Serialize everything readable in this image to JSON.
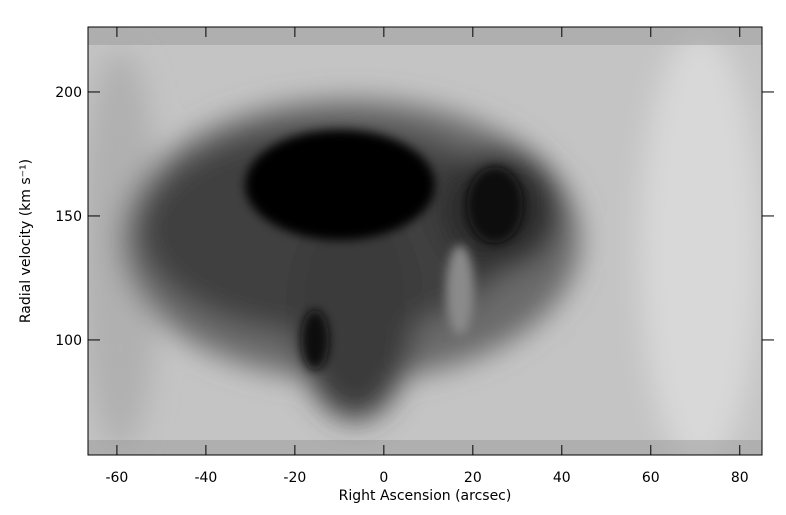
{
  "chart_data": {
    "type": "image",
    "x_label": "Right Ascension (arcsec)",
    "y_label": "Radial velocity (km s⁻¹)",
    "xlim": [
      -66.5,
      85
    ],
    "xticks": [
      -60,
      -40,
      -20,
      0,
      20,
      40,
      60,
      80
    ],
    "ylim": [
      53.6,
      226.2
    ],
    "yticks": [
      100,
      150,
      200
    ],
    "colormap": "gray"
  }
}
